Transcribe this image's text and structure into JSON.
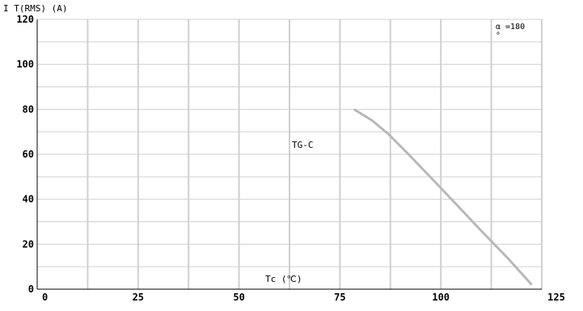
{
  "chart_data": {
    "type": "line",
    "ylabel": "I T(RMS)  (A)",
    "xlabel": "Tc (℃)",
    "xlim": [
      0,
      125
    ],
    "ylim": [
      0,
      120
    ],
    "x_ticks": [
      "0",
      "25",
      "50",
      "75",
      "100",
      "125"
    ],
    "y_ticks": [
      "0",
      "20",
      "40",
      "60",
      "80",
      "100",
      "120"
    ],
    "grid": true,
    "annotations": [
      "TG-C",
      "α =180",
      "°"
    ],
    "series": [
      {
        "x": [
          78.5,
          83,
          87,
          92,
          100,
          110,
          117,
          122.5
        ],
        "y": [
          80,
          75,
          69,
          60,
          45,
          26,
          13,
          2
        ]
      }
    ],
    "colors": {
      "grid": "#d0d0d0",
      "line": "#b8b8b8",
      "axis": "#000000"
    }
  }
}
